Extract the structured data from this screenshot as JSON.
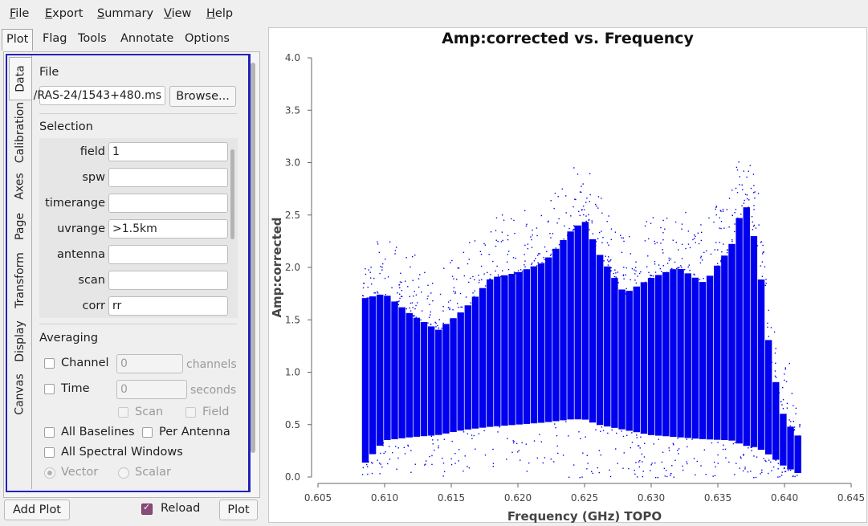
{
  "menubar": {
    "items": [
      "File",
      "Export",
      "Summary",
      "View",
      "Help"
    ]
  },
  "top_tabs": [
    "Plot",
    "Flag",
    "Tools",
    "Annotate",
    "Options"
  ],
  "side_tabs": [
    "Data",
    "Calibration",
    "Axes",
    "Page",
    "Transform",
    "Display",
    "Canvas"
  ],
  "data_tab": {
    "file_title": "File",
    "file_value": "/RAS-24/1543+480.ms",
    "browse_label": "Browse...",
    "selection_title": "Selection",
    "selection": [
      {
        "label": "field",
        "value": "1"
      },
      {
        "label": "spw",
        "value": ""
      },
      {
        "label": "timerange",
        "value": ""
      },
      {
        "label": "uvrange",
        "value": ">1.5km"
      },
      {
        "label": "antenna",
        "value": ""
      },
      {
        "label": "scan",
        "value": ""
      },
      {
        "label": "corr",
        "value": "rr"
      }
    ],
    "averaging_title": "Averaging",
    "channel_label": "Channel",
    "channel_value": "0",
    "channel_unit": "channels",
    "time_label": "Time",
    "time_value": "0",
    "time_unit": "seconds",
    "scan_label": "Scan",
    "field_label": "Field",
    "all_baselines_label": "All Baselines",
    "per_antenna_label": "Per Antenna",
    "all_spw_label": "All Spectral Windows",
    "vector_label": "Vector",
    "scalar_label": "Scalar"
  },
  "bottom": {
    "add_plot_label": "Add Plot",
    "reload_label": "Reload",
    "reload_checked": true,
    "plot_label": "Plot"
  },
  "colors": {
    "points": "#0000ee",
    "accent_frame": "#2222bb",
    "checkbox_checked": "#8a4a7a"
  },
  "chart_data": {
    "type": "scatter",
    "title": "Amp:corrected vs. Frequency",
    "xlabel": "Frequency (GHz) TOPO",
    "ylabel": "Amp:corrected",
    "xlim": [
      0.605,
      0.645
    ],
    "ylim": [
      0.0,
      4.0
    ],
    "x_ticks": [
      "0.605",
      "0.610",
      "0.615",
      "0.620",
      "0.625",
      "0.630",
      "0.635",
      "0.640",
      "0.645"
    ],
    "y_ticks": [
      "0.0",
      "0.5",
      "1.0",
      "1.5",
      "2.0",
      "2.5",
      "3.0",
      "3.5",
      "4.0"
    ],
    "grid": false,
    "series": [
      {
        "x": [
          0.6083,
          0.61,
          0.612,
          0.614,
          0.616,
          0.618,
          0.62,
          0.622,
          0.624,
          0.625,
          0.626,
          0.628,
          0.63,
          0.632,
          0.634,
          0.636,
          0.637,
          0.638,
          0.639,
          0.64,
          0.6413
        ],
        "y_low": [
          0.1,
          0.35,
          0.38,
          0.4,
          0.45,
          0.48,
          0.5,
          0.52,
          0.55,
          0.55,
          0.5,
          0.45,
          0.4,
          0.38,
          0.36,
          0.35,
          0.3,
          0.28,
          0.2,
          0.1,
          0.02
        ],
        "y_high": [
          1.7,
          1.75,
          1.55,
          1.4,
          1.6,
          1.9,
          1.95,
          2.05,
          2.35,
          2.45,
          2.15,
          1.75,
          1.9,
          2.0,
          1.85,
          2.2,
          2.65,
          2.15,
          1.1,
          0.55,
          0.35
        ]
      }
    ]
  }
}
